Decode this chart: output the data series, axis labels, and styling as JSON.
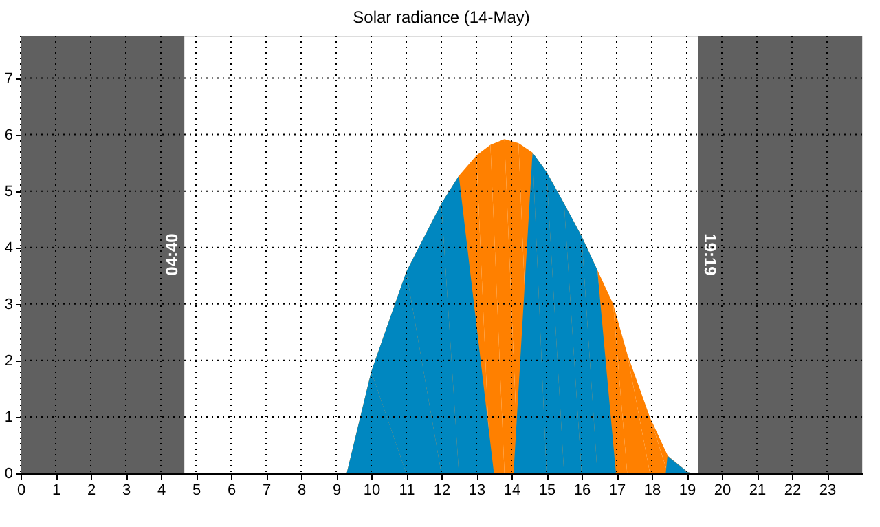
{
  "chart_data": {
    "type": "area",
    "title": "Solar radiance (14-May)",
    "series": [
      {
        "color": "#ff8000",
        "x": [
          9.3,
          10,
          11,
          12,
          12.5,
          13,
          13.4,
          13.8,
          14.2,
          14.6,
          15,
          15.5,
          16,
          16.45,
          16.9,
          17.3,
          17.95,
          18.46,
          19.03,
          19.2
        ],
        "values": [
          0,
          1.8,
          3.57,
          4.78,
          5.27,
          5.63,
          5.82,
          5.92,
          5.85,
          5.68,
          5.34,
          4.78,
          4.2,
          3.6,
          3.0,
          2.12,
          0.99,
          0.31,
          0.02,
          0
        ]
      },
      {
        "color": "#0087c0",
        "x": [
          9.3,
          10,
          11,
          12,
          12.5,
          13.5,
          14.06,
          14.6,
          15,
          15.5,
          16,
          16.45,
          16.98,
          18.4,
          18.45,
          19.03,
          19.2
        ],
        "values": [
          0,
          1.8,
          3.57,
          4.78,
          5.27,
          0,
          0,
          5.68,
          5.34,
          4.78,
          4.2,
          3.6,
          0,
          0,
          0.31,
          0.02,
          0
        ]
      }
    ],
    "xlim": [
      0,
      24
    ],
    "xticks": [
      0,
      1,
      2,
      3,
      4,
      5,
      6,
      7,
      8,
      9,
      10,
      11,
      12,
      13,
      14,
      15,
      16,
      17,
      18,
      19,
      20,
      21,
      22,
      23
    ],
    "ylim": [
      0,
      7.75
    ],
    "yticks": [
      0,
      1,
      2,
      3,
      4,
      5,
      6,
      7
    ],
    "bands": [
      {
        "axis": "x",
        "from": 0,
        "to": 4.67,
        "label": "04:40",
        "color": "#606060"
      },
      {
        "axis": "x",
        "from": 19.32,
        "to": 24,
        "label": "19:19",
        "color": "#606060"
      }
    ],
    "grid": true
  }
}
